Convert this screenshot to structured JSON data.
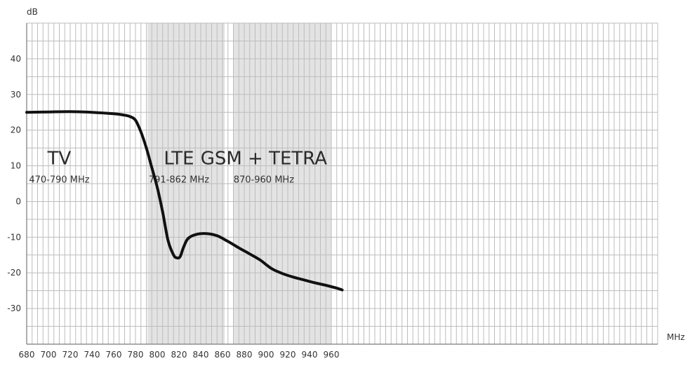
{
  "chart_data": {
    "type": "line",
    "ylabel": "dB",
    "xlabel": "MHz",
    "xlim": [
      680,
      970
    ],
    "ylim": [
      -40,
      50
    ],
    "x_ticks": [
      680,
      700,
      720,
      740,
      760,
      780,
      800,
      820,
      840,
      860,
      880,
      900,
      920,
      940,
      960
    ],
    "y_ticks": [
      40,
      30,
      20,
      10,
      0,
      -10,
      -20,
      -30
    ],
    "grid": true,
    "legend": "none",
    "colors": {
      "line": "#111111",
      "grid": "#bdbdbd",
      "band": "#e3e3e3",
      "background": "#ffffff"
    },
    "bands": [
      {
        "name": "TV",
        "range": "470-790 MHz",
        "from": 680,
        "to": 790,
        "shaded": false
      },
      {
        "name": "LTE",
        "range": "791-862 MHz",
        "from": 791,
        "to": 862,
        "shaded": true
      },
      {
        "name": "GSM + TETRA",
        "range": "870-960 MHz",
        "from": 870,
        "to": 960,
        "shaded": true
      }
    ],
    "series": [
      {
        "x": [
          680,
          700,
          720,
          740,
          760,
          770,
          775,
          780,
          785,
          790,
          795,
          800,
          805,
          810,
          815,
          818,
          821,
          824,
          828,
          835,
          845,
          855,
          865,
          875,
          885,
          895,
          905,
          915,
          925,
          935,
          945,
          955,
          965,
          970
        ],
        "values": [
          25,
          25.1,
          25.2,
          25.0,
          24.6,
          24.2,
          23.8,
          22.8,
          19.5,
          15,
          9.5,
          4,
          -3,
          -11,
          -15,
          -15.8,
          -15.5,
          -13,
          -10.5,
          -9.3,
          -9,
          -9.6,
          -11.2,
          -13,
          -14.7,
          -16.5,
          -18.8,
          -20.2,
          -21.2,
          -22,
          -22.8,
          -23.5,
          -24.3,
          -24.8
        ]
      }
    ]
  }
}
